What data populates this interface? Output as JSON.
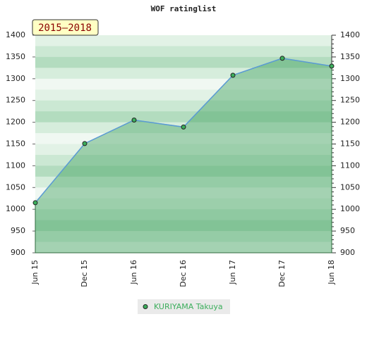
{
  "chart_data": {
    "type": "line",
    "title": "WOF ratinglist",
    "annotation": "2015–2018",
    "categories": [
      "Jun 15",
      "Dec 15",
      "Jun 16",
      "Dec 16",
      "Jun 17",
      "Dec 17",
      "Jun 18"
    ],
    "series": [
      {
        "name": "KURIYAMA Takuya",
        "color": "#5b9bd5",
        "values": [
          1015,
          1151,
          1205,
          1189,
          1308,
          1347,
          1329
        ]
      }
    ],
    "ylim": [
      900,
      1400
    ],
    "yticks": [
      900,
      950,
      1000,
      1050,
      1100,
      1150,
      1200,
      1250,
      1300,
      1350,
      1400
    ],
    "y2lim": [
      900,
      1400
    ],
    "y2ticks": [
      900,
      950,
      1000,
      1050,
      1100,
      1150,
      1200,
      1250,
      1300,
      1350,
      1400
    ],
    "area": true
  }
}
